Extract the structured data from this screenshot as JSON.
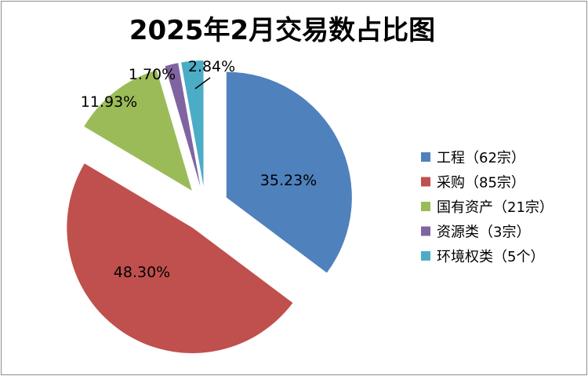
{
  "chart_data": {
    "type": "pie",
    "title": "2025年2月交易数占比图",
    "slices": [
      {
        "label": "工程（62宗）",
        "value": 35.23,
        "display": "35.23%",
        "color": "#4F81BD"
      },
      {
        "label": "采购（85宗）",
        "value": 48.3,
        "display": "48.30%",
        "color": "#C0504D"
      },
      {
        "label": "国有资产（21宗）",
        "value": 11.93,
        "display": "11.93%",
        "color": "#9BBB59"
      },
      {
        "label": "资源类（3宗）",
        "value": 1.7,
        "display": "1.70%",
        "color": "#8064A2"
      },
      {
        "label": "环境权类（5个）",
        "value": 2.84,
        "display": "2.84%",
        "color": "#4BACC6"
      }
    ],
    "legend_position": "right",
    "exploded": true
  }
}
